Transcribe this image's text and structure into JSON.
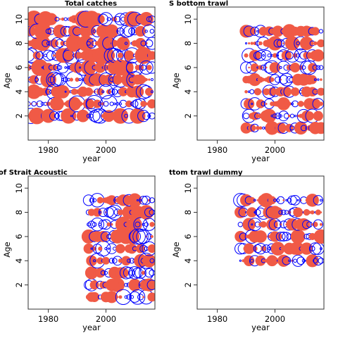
{
  "colors": {
    "positive": "#f05a46",
    "negative": "#0000ff"
  },
  "chart_data": [
    {
      "type": "scatter",
      "title": "Total catches",
      "xlabel": "year",
      "ylabel": "Age",
      "xlim": [
        1973,
        2017
      ],
      "ylim": [
        0,
        11
      ],
      "x_ticks": [
        1980,
        2000
      ],
      "y_ticks": [
        2,
        4,
        6,
        8,
        10
      ],
      "grid": false,
      "years": [
        1973,
        2016
      ],
      "ages": [
        2,
        3,
        4,
        5,
        6,
        7,
        8,
        9,
        10
      ],
      "max_bubble_r": 11
    },
    {
      "type": "scatter",
      "title": "S bottom trawl",
      "xlabel": "year",
      "ylabel": "Age",
      "xlim": [
        1973,
        2017
      ],
      "ylim": [
        0,
        11
      ],
      "x_ticks": [
        1980,
        2000
      ],
      "y_ticks": [
        2,
        4,
        6,
        8,
        10
      ],
      "grid": false,
      "years": [
        1990,
        2016
      ],
      "ages": [
        1,
        2,
        3,
        4,
        5,
        6,
        7,
        8,
        9
      ],
      "max_bubble_r": 9
    },
    {
      "type": "scatter",
      "title": "of Strait Acoustic",
      "xlabel": "year",
      "ylabel": "Age",
      "xlim": [
        1973,
        2017
      ],
      "ylim": [
        0,
        11
      ],
      "x_ticks": [
        1980,
        2000
      ],
      "y_ticks": [
        2,
        4,
        6,
        8,
        10
      ],
      "grid": false,
      "years": [
        1994,
        2016
      ],
      "ages": [
        1,
        2,
        3,
        4,
        5,
        6,
        7,
        8,
        9
      ],
      "max_bubble_r": 10
    },
    {
      "type": "scatter",
      "title": "ttom trawl dummy",
      "xlabel": "year",
      "ylabel": "Age",
      "xlim": [
        1973,
        2017
      ],
      "ylim": [
        0,
        11
      ],
      "x_ticks": [
        1980,
        2000
      ],
      "y_ticks": [
        2,
        4,
        6,
        8,
        10
      ],
      "grid": false,
      "years": [
        1988,
        2016
      ],
      "ages": [
        4,
        5,
        6,
        7,
        8,
        9
      ],
      "max_bubble_r": 9
    }
  ]
}
